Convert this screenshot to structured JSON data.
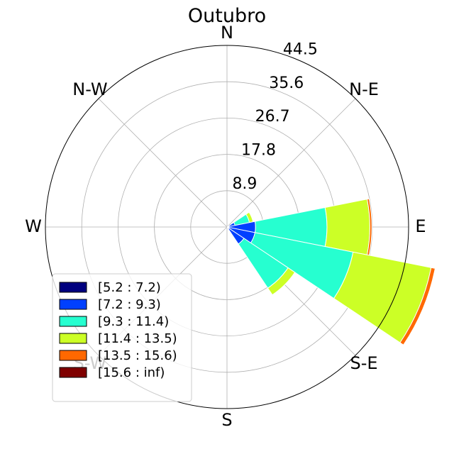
{
  "chart_data": {
    "type": "windrose",
    "title": "Outubro",
    "directions": [
      "N",
      "N-E",
      "E",
      "S-E",
      "S",
      "S-W",
      "W",
      "N-W"
    ],
    "radial_ticks": [
      8.9,
      17.8,
      26.7,
      35.6,
      44.5
    ],
    "rmax": 44.5,
    "sector_width_deg": 22.5,
    "bins": [
      {
        "label": "[5.2 : 7.2)",
        "color": "#00007f"
      },
      {
        "label": "[7.2 : 9.3)",
        "color": "#0040ff"
      },
      {
        "label": "[9.3 : 11.4)",
        "color": "#26ffd0"
      },
      {
        "label": "[11.4 : 13.5)",
        "color": "#ccff26"
      },
      {
        "label": "[13.5 : 15.6)",
        "color": "#ff6800"
      },
      {
        "label": "[15.6 : inf)",
        "color": "#7f0000"
      }
    ],
    "sectors": [
      {
        "bearing": 67.5,
        "values": [
          0.5,
          1.5,
          3.6,
          0.9,
          0,
          0
        ]
      },
      {
        "bearing": 90,
        "values": [
          0.5,
          6.5,
          17.5,
          10.5,
          0.5,
          0
        ]
      },
      {
        "bearing": 112.5,
        "values": [
          0.5,
          6.5,
          24.5,
          19.5,
          1.0,
          0
        ]
      },
      {
        "bearing": 135,
        "values": [
          0.5,
          4.5,
          13.0,
          2.0,
          0,
          0
        ]
      }
    ]
  }
}
